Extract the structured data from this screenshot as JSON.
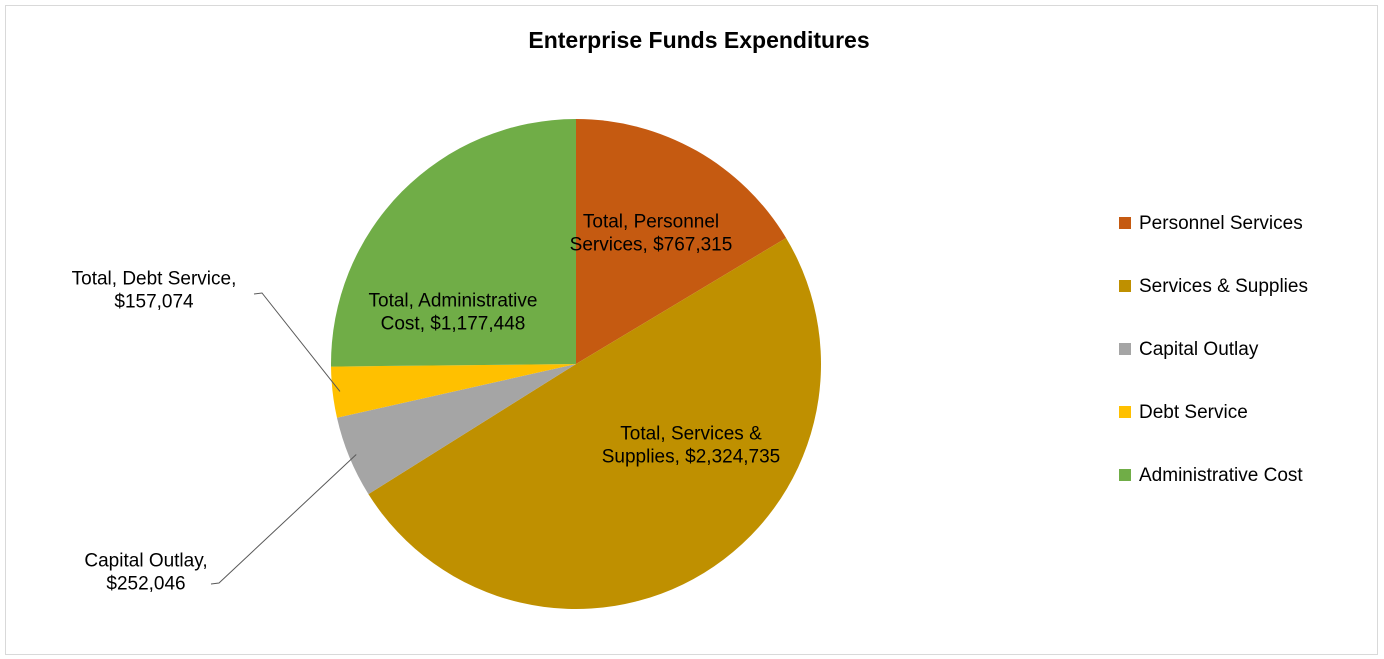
{
  "chart_data": {
    "type": "pie",
    "title": "Enterprise Funds Expenditures",
    "categories": [
      "Personnel Services",
      "Services & Supplies",
      "Capital Outlay",
      "Debt Service",
      "Administrative Cost"
    ],
    "values": [
      767315,
      2324735,
      252046,
      157074,
      1177448
    ],
    "colors": [
      "#c55a11",
      "#bf9000",
      "#a5a5a5",
      "#ffc000",
      "#70ad47"
    ],
    "data_labels": [
      [
        "Total, Personnel",
        "Services, $767,315"
      ],
      [
        "Total, Services &",
        "Supplies, $2,324,735"
      ],
      [
        "Capital Outlay,",
        "$252,046"
      ],
      [
        "Total, Debt Service,",
        "$157,074"
      ],
      [
        "Total, Administrative",
        "Cost, $1,177,448"
      ]
    ],
    "legend": {
      "position": "right",
      "entries": [
        "Personnel Services",
        "Services & Supplies",
        "Capital Outlay",
        "Debt Service",
        "Administrative Cost"
      ]
    }
  }
}
